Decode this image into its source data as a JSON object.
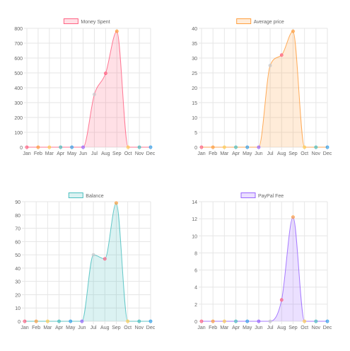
{
  "colors": {
    "grid": "#e6e6e6",
    "tick_text": "#666666",
    "point_palette": [
      "#ff6384",
      "#ff9f40",
      "#ffcd56",
      "#4bc0c0",
      "#36a2eb",
      "#9966ff",
      "#c9cbcf"
    ]
  },
  "chart_data": [
    {
      "type": "area",
      "title": "",
      "legend": "top-center",
      "grid": true,
      "categories": [
        "Jan",
        "Feb",
        "Mar",
        "Apr",
        "May",
        "Jun",
        "Jul",
        "Aug",
        "Sep",
        "Oct",
        "Nov",
        "Dec"
      ],
      "ylim": [
        0,
        800
      ],
      "yticks": [
        0,
        100,
        200,
        300,
        400,
        500,
        600,
        700,
        800
      ],
      "series": [
        {
          "name": "Money Spent",
          "color": "#ff6384",
          "fill": "rgba(255,99,132,0.2)",
          "values": [
            0,
            0,
            0,
            0,
            0,
            0,
            355,
            497,
            780,
            0,
            0,
            0
          ]
        }
      ]
    },
    {
      "type": "area",
      "title": "",
      "legend": "top-center",
      "grid": true,
      "categories": [
        "Jan",
        "Feb",
        "Mar",
        "Apr",
        "May",
        "Jun",
        "Jul",
        "Aug",
        "Sep",
        "Oct",
        "Nov",
        "Dec"
      ],
      "ylim": [
        0,
        40
      ],
      "yticks": [
        0,
        5,
        10,
        15,
        20,
        25,
        30,
        35,
        40
      ],
      "series": [
        {
          "name": "Average price",
          "color": "#ff9f40",
          "fill": "rgba(255,159,64,0.2)",
          "values": [
            0,
            0,
            0,
            0,
            0,
            0,
            27.5,
            31,
            39,
            0,
            0,
            0
          ]
        }
      ]
    },
    {
      "type": "area",
      "title": "",
      "legend": "top-center",
      "grid": true,
      "categories": [
        "Jan",
        "Feb",
        "Mar",
        "Apr",
        "May",
        "Jun",
        "Jul",
        "Aug",
        "Sep",
        "Oct",
        "Nov",
        "Dec"
      ],
      "ylim": [
        0,
        90
      ],
      "yticks": [
        0,
        10,
        20,
        30,
        40,
        50,
        60,
        70,
        80,
        90
      ],
      "series": [
        {
          "name": "Balance",
          "color": "#4bc0c0",
          "fill": "rgba(75,192,192,0.2)",
          "values": [
            0,
            0,
            0,
            0,
            0,
            0,
            50,
            47,
            89,
            0,
            0,
            0
          ]
        }
      ]
    },
    {
      "type": "area",
      "title": "",
      "legend": "top-center",
      "grid": true,
      "categories": [
        "Jan",
        "Feb",
        "Mar",
        "Apr",
        "May",
        "Jun",
        "Jul",
        "Aug",
        "Sep",
        "Oct",
        "Nov",
        "Dec"
      ],
      "ylim": [
        0,
        14
      ],
      "yticks": [
        0,
        2,
        4,
        6,
        8,
        10,
        12,
        14
      ],
      "series": [
        {
          "name": "PayPal Fee",
          "color": "#9966ff",
          "fill": "rgba(153,102,255,0.2)",
          "values": [
            0,
            0,
            0,
            0,
            0,
            0,
            0,
            2.5,
            12.2,
            0,
            0,
            0
          ]
        }
      ]
    }
  ]
}
